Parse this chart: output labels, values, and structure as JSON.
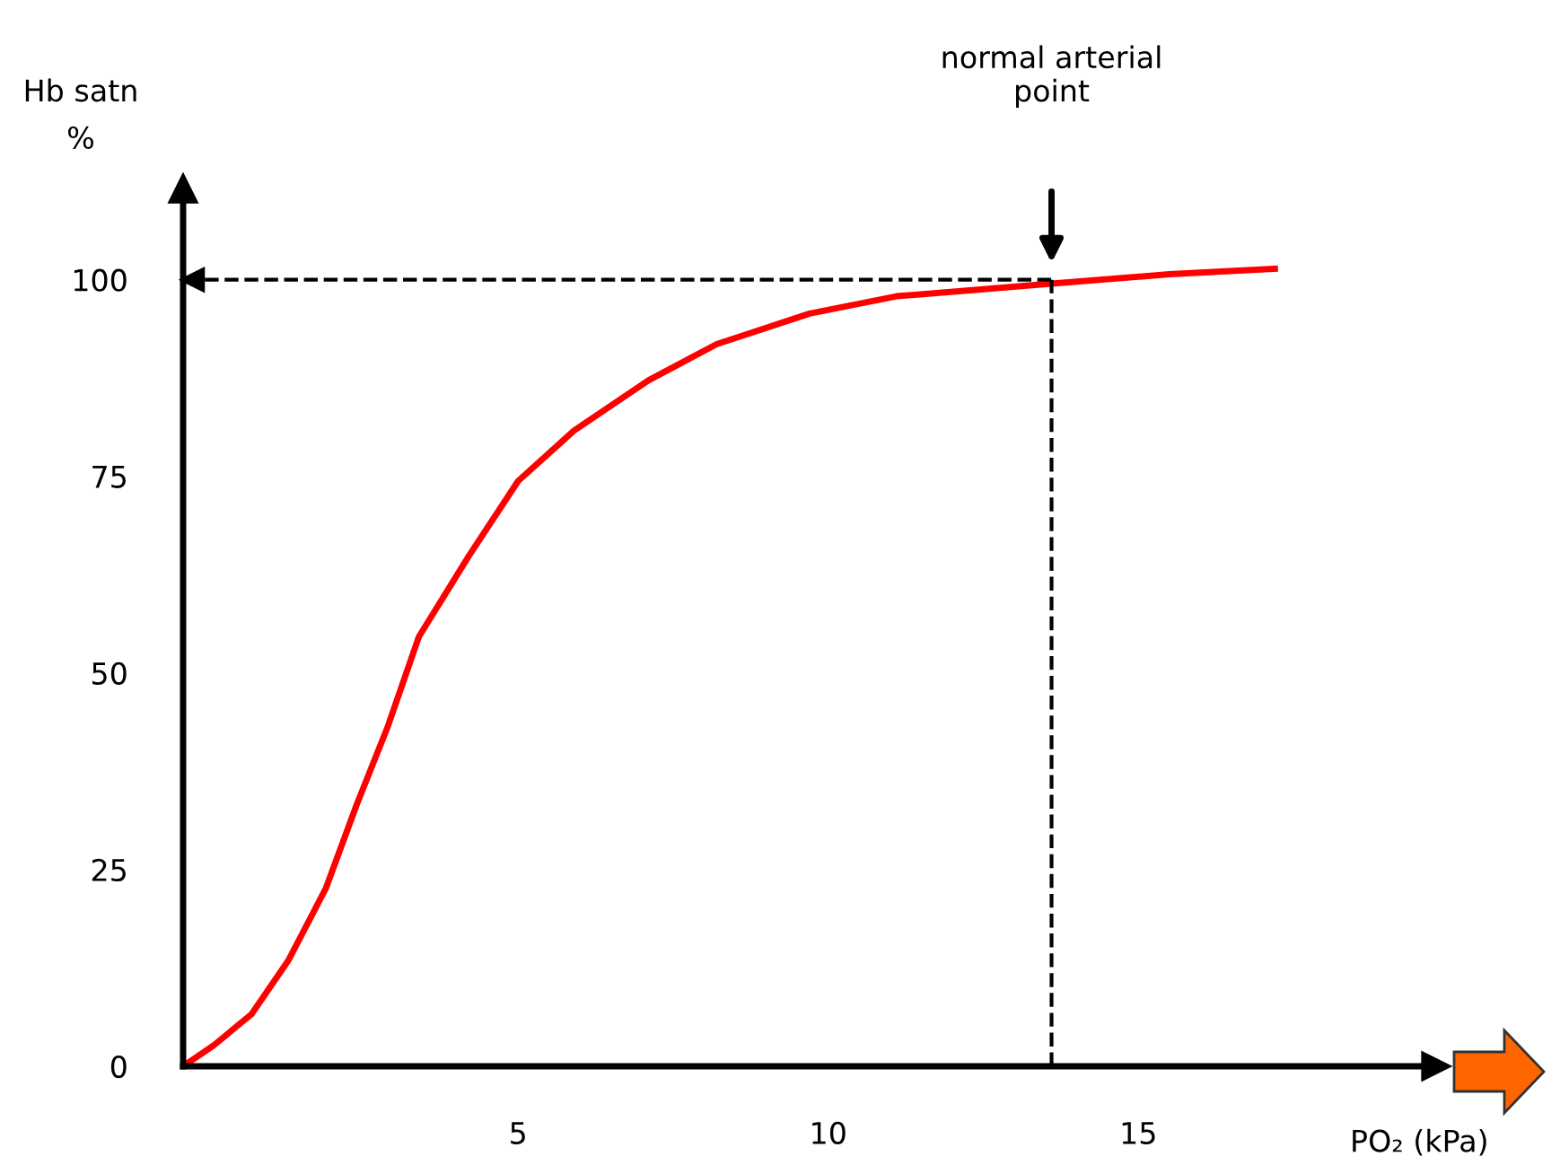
{
  "chart_data": {
    "type": "line",
    "xlabel": "PO₂ (kPa)",
    "ylabel": "Hb satn\n%",
    "series": [
      {
        "color": "#ff0000",
        "x": [
          -0.4,
          0.1,
          0.7,
          1.3,
          1.9,
          2.4,
          2.9,
          3.4,
          4.2,
          5.0,
          5.9,
          7.1,
          8.2,
          9.7,
          11.1,
          13.6,
          15.5,
          17.2
        ],
        "values": [
          0,
          2.7,
          6.6,
          13.5,
          22.6,
          33.3,
          43.2,
          54.6,
          64.8,
          74.4,
          80.8,
          87.2,
          91.8,
          95.7,
          97.9,
          99.5,
          100.7,
          101.4
        ]
      }
    ],
    "xlim": [
      -0.4,
      19.8
    ],
    "ylim": [
      0,
      111.6
    ],
    "xticks": [
      5,
      10,
      15
    ],
    "yticks": [
      0,
      25,
      50,
      75,
      100
    ],
    "ref_lines": [
      {
        "axis": "y",
        "value": 100,
        "line_style": "dashed",
        "color": "#000000"
      },
      {
        "axis": "x",
        "value": 13.6,
        "line_style": "dashed",
        "color": "#000000"
      }
    ],
    "annotations": [
      "normal arterial\npoint"
    ],
    "grid": false,
    "legend": false,
    "marker": "none",
    "line_style": "solid"
  }
}
